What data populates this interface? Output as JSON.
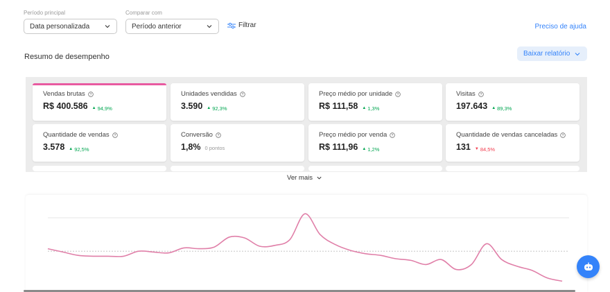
{
  "filters": {
    "period_label": "Período principal",
    "period_value": "Data personalizada",
    "compare_label": "Comparar com",
    "compare_value": "Período anterior",
    "filter_button": "Filtrar"
  },
  "help_link": "Preciso de ajuda",
  "section_title": "Resumo de desempenho",
  "download_button": "Baixar relatório",
  "metrics": [
    {
      "title": "Vendas brutas",
      "value": "R$ 400.586",
      "delta": "94,9%",
      "trend": "up",
      "active": true
    },
    {
      "title": "Unidades vendidas",
      "value": "3.590",
      "delta": "92,3%",
      "trend": "up"
    },
    {
      "title": "Preço médio por unidade",
      "value": "R$ 111,58",
      "delta": "1,3%",
      "trend": "up"
    },
    {
      "title": "Visitas",
      "value": "197.643",
      "delta": "89,3%",
      "trend": "up"
    },
    {
      "title": "Quantidade de vendas",
      "value": "3.578",
      "delta": "92,5%",
      "trend": "up"
    },
    {
      "title": "Conversão",
      "value": "1,8%",
      "delta": "0 pontos",
      "trend": "neutral"
    },
    {
      "title": "Preço médio por venda",
      "value": "R$ 111,96",
      "delta": "1,2%",
      "trend": "up"
    },
    {
      "title": "Quantidade de vendas canceladas",
      "value": "131",
      "delta": "84,5%",
      "trend": "down"
    }
  ],
  "see_more": "Ver mais",
  "colors": {
    "accent": "#3483fa",
    "line": "#e07fa8",
    "positive": "#00a650",
    "negative": "#f23d4f"
  },
  "chart_data": {
    "type": "line",
    "series": [
      {
        "values": [
          52,
          48,
          44,
          43,
          43,
          43,
          49,
          48,
          47,
          53,
          52,
          54,
          66,
          65,
          55,
          56,
          63,
          94,
          69,
          57,
          50,
          46,
          44,
          40,
          38,
          33,
          39,
          27,
          33,
          58,
          39,
          31,
          26,
          17,
          13
        ]
      }
    ],
    "reference_line": 49,
    "ylim": [
      0,
      100
    ],
    "grid": true
  }
}
